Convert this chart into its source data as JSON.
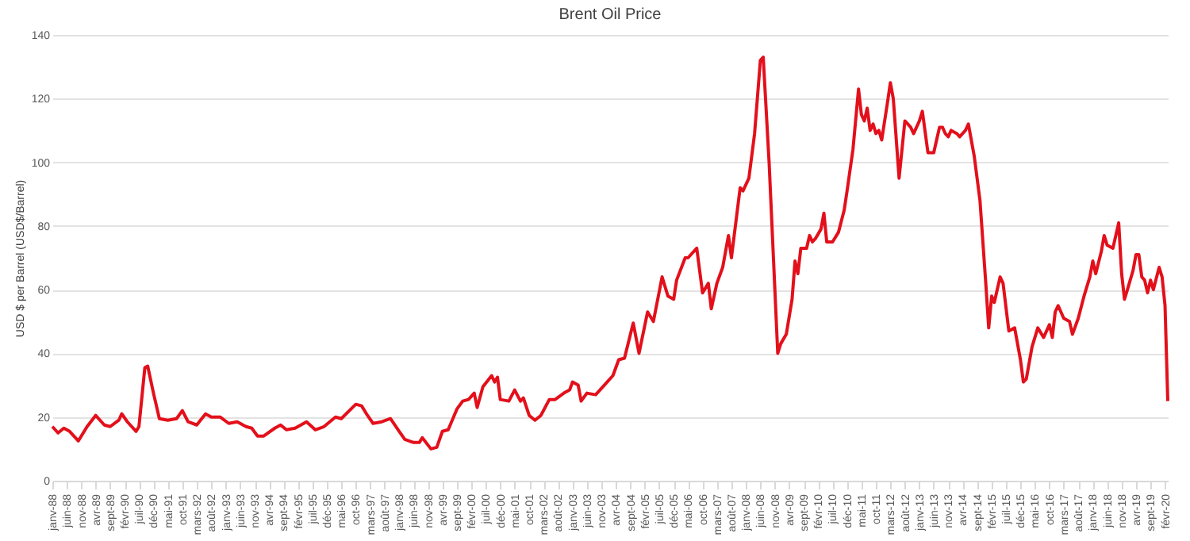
{
  "chart_data": {
    "type": "line",
    "title": "Brent Oil Price",
    "ylabel": "USD $ per Barrel (USD$/Barrel)",
    "x": [
      "1988-01",
      "1988-03",
      "1988-05",
      "1988-07",
      "1988-10",
      "1989-01",
      "1989-04",
      "1989-07",
      "1989-09",
      "1989-12",
      "1990-01",
      "1990-03",
      "1990-06",
      "1990-07",
      "1990-09",
      "1990-10",
      "1990-12",
      "1991-02",
      "1991-05",
      "1991-08",
      "1991-10",
      "1991-12",
      "1992-03",
      "1992-06",
      "1992-08",
      "1992-11",
      "1993-02",
      "1993-05",
      "1993-08",
      "1993-10",
      "1993-12",
      "1994-02",
      "1994-06",
      "1994-08",
      "1994-10",
      "1995-01",
      "1995-05",
      "1995-08",
      "1995-11",
      "1996-03",
      "1996-05",
      "1996-10",
      "1996-12",
      "1997-02",
      "1997-04",
      "1997-07",
      "1997-10",
      "1998-01",
      "1998-03",
      "1998-06",
      "1998-08",
      "1998-09",
      "1998-12",
      "1999-02",
      "1999-04",
      "1999-06",
      "1999-09",
      "1999-11",
      "2000-01",
      "2000-03",
      "2000-04",
      "2000-06",
      "2000-09",
      "2000-10",
      "2000-11",
      "2000-12",
      "2001-03",
      "2001-05",
      "2001-07",
      "2001-08",
      "2001-10",
      "2001-12",
      "2002-02",
      "2002-05",
      "2002-07",
      "2002-10",
      "2002-12",
      "2003-01",
      "2003-03",
      "2003-04",
      "2003-06",
      "2003-09",
      "2003-12",
      "2004-03",
      "2004-05",
      "2004-07",
      "2004-10",
      "2004-12",
      "2005-03",
      "2005-05",
      "2005-08",
      "2005-10",
      "2005-12",
      "2006-01",
      "2006-04",
      "2006-05",
      "2006-08",
      "2006-10",
      "2006-12",
      "2007-01",
      "2007-03",
      "2007-05",
      "2007-07",
      "2007-08",
      "2007-11",
      "2007-12",
      "2008-02",
      "2008-04",
      "2008-06",
      "2008-07",
      "2008-09",
      "2008-12",
      "2009-01",
      "2009-03",
      "2009-05",
      "2009-06",
      "2009-07",
      "2009-08",
      "2009-10",
      "2009-11",
      "2009-12",
      "2010-01",
      "2010-03",
      "2010-04",
      "2010-05",
      "2010-07",
      "2010-09",
      "2010-11",
      "2010-12",
      "2011-02",
      "2011-04",
      "2011-05",
      "2011-06",
      "2011-07",
      "2011-08",
      "2011-09",
      "2011-10",
      "2011-11",
      "2011-12",
      "2012-02",
      "2012-03",
      "2012-04",
      "2012-06",
      "2012-08",
      "2012-09",
      "2012-10",
      "2012-11",
      "2013-01",
      "2013-02",
      "2013-04",
      "2013-06",
      "2013-07",
      "2013-08",
      "2013-09",
      "2013-10",
      "2013-11",
      "2013-12",
      "2014-02",
      "2014-03",
      "2014-05",
      "2014-06",
      "2014-08",
      "2014-10",
      "2014-12",
      "2015-01",
      "2015-02",
      "2015-03",
      "2015-05",
      "2015-06",
      "2015-08",
      "2015-10",
      "2015-12",
      "2016-01",
      "2016-02",
      "2016-04",
      "2016-06",
      "2016-08",
      "2016-10",
      "2016-11",
      "2016-12",
      "2017-01",
      "2017-03",
      "2017-05",
      "2017-06",
      "2017-08",
      "2017-10",
      "2017-12",
      "2018-01",
      "2018-02",
      "2018-04",
      "2018-05",
      "2018-06",
      "2018-08",
      "2018-10",
      "2018-11",
      "2018-12",
      "2019-01",
      "2019-03",
      "2019-04",
      "2019-05",
      "2019-06",
      "2019-07",
      "2019-08",
      "2019-09",
      "2019-10",
      "2019-12",
      "2020-01",
      "2020-02",
      "2020-03"
    ],
    "series": [
      {
        "color": "#e3101b",
        "values": [
          17,
          15,
          16.5,
          15.5,
          12.5,
          17,
          20.5,
          17.5,
          17,
          19,
          21,
          18.5,
          15.5,
          17,
          35.5,
          36,
          27.5,
          19.5,
          19,
          19.5,
          22,
          18.5,
          17.5,
          21,
          20,
          20,
          18,
          18.5,
          17,
          16.5,
          14,
          14,
          16.5,
          17.5,
          16,
          16.5,
          18.5,
          16,
          17,
          20,
          19.5,
          24,
          23.5,
          20.5,
          18,
          18.5,
          19.5,
          15.5,
          13,
          12,
          12,
          13.5,
          10,
          10.5,
          15.5,
          16,
          22.5,
          25,
          25.5,
          27.5,
          23,
          29.5,
          33,
          31,
          32.5,
          25.5,
          25,
          28.5,
          25,
          26,
          20.5,
          19,
          20.5,
          25.5,
          25.5,
          27.5,
          28.5,
          31,
          30,
          25,
          27.5,
          27,
          30,
          33,
          38,
          38.5,
          49.5,
          40,
          53,
          50,
          64,
          58,
          57,
          63,
          70,
          70,
          73,
          59,
          62,
          54,
          62,
          67,
          77,
          70,
          92,
          91,
          95,
          109,
          132,
          133,
          100,
          40,
          43,
          46,
          57,
          69,
          65,
          73,
          73,
          77,
          75,
          76,
          79,
          84,
          75,
          75,
          78,
          85,
          91,
          104,
          123,
          115,
          113,
          117,
          110,
          112,
          109,
          110,
          107,
          119,
          125,
          120,
          95,
          113,
          112,
          111,
          109,
          113,
          116,
          103,
          103,
          107,
          111,
          111,
          109,
          108,
          110,
          109,
          108,
          110,
          112,
          102,
          88,
          62,
          48,
          58,
          56,
          64,
          62,
          47,
          48,
          38,
          31,
          32,
          42,
          48,
          45,
          49,
          45,
          53,
          55,
          51,
          50,
          46,
          51,
          58,
          64,
          69,
          65,
          72,
          77,
          74,
          73,
          81,
          65,
          57,
          60,
          66,
          71,
          71,
          64,
          63,
          59,
          63,
          60,
          67,
          64,
          55,
          25
        ]
      }
    ],
    "xlim": [
      "1988-01",
      "2020-03"
    ],
    "ylim": [
      0,
      140
    ],
    "yticks": [
      0,
      20,
      40,
      60,
      80,
      100,
      120,
      140
    ],
    "grid": "y",
    "marker": "none",
    "line_style": "solid",
    "xticks": [
      {
        "value": "1988-01",
        "label": "janv-88"
      },
      {
        "value": "1988-06",
        "label": "juin-88"
      },
      {
        "value": "1988-11",
        "label": "nov-88"
      },
      {
        "value": "1989-04",
        "label": "avr-89"
      },
      {
        "value": "1989-09",
        "label": "sept-89"
      },
      {
        "value": "1990-02",
        "label": "févr-90"
      },
      {
        "value": "1990-07",
        "label": "juil-90"
      },
      {
        "value": "1990-12",
        "label": "déc-90"
      },
      {
        "value": "1991-05",
        "label": "mai-91"
      },
      {
        "value": "1991-10",
        "label": "oct-91"
      },
      {
        "value": "1992-03",
        "label": "mars-92"
      },
      {
        "value": "1992-08",
        "label": "août-92"
      },
      {
        "value": "1993-01",
        "label": "janv-93"
      },
      {
        "value": "1993-06",
        "label": "juin-93"
      },
      {
        "value": "1993-11",
        "label": "nov-93"
      },
      {
        "value": "1994-04",
        "label": "avr-94"
      },
      {
        "value": "1994-09",
        "label": "sept-94"
      },
      {
        "value": "1995-02",
        "label": "févr-95"
      },
      {
        "value": "1995-07",
        "label": "juil-95"
      },
      {
        "value": "1995-12",
        "label": "déc-95"
      },
      {
        "value": "1996-05",
        "label": "mai-96"
      },
      {
        "value": "1996-10",
        "label": "oct-96"
      },
      {
        "value": "1997-03",
        "label": "mars-97"
      },
      {
        "value": "1997-08",
        "label": "août-97"
      },
      {
        "value": "1998-01",
        "label": "janv-98"
      },
      {
        "value": "1998-06",
        "label": "juin-98"
      },
      {
        "value": "1998-11",
        "label": "nov-98"
      },
      {
        "value": "1999-04",
        "label": "avr-99"
      },
      {
        "value": "1999-09",
        "label": "sept-99"
      },
      {
        "value": "2000-02",
        "label": "févr-00"
      },
      {
        "value": "2000-07",
        "label": "juil-00"
      },
      {
        "value": "2000-12",
        "label": "déc-00"
      },
      {
        "value": "2001-05",
        "label": "mai-01"
      },
      {
        "value": "2001-10",
        "label": "oct-01"
      },
      {
        "value": "2002-03",
        "label": "mars-02"
      },
      {
        "value": "2002-08",
        "label": "août-02"
      },
      {
        "value": "2003-01",
        "label": "janv-03"
      },
      {
        "value": "2003-06",
        "label": "juin-03"
      },
      {
        "value": "2003-11",
        "label": "nov-03"
      },
      {
        "value": "2004-04",
        "label": "avr-04"
      },
      {
        "value": "2004-09",
        "label": "sept-04"
      },
      {
        "value": "2005-02",
        "label": "févr-05"
      },
      {
        "value": "2005-07",
        "label": "juil-05"
      },
      {
        "value": "2005-12",
        "label": "déc-05"
      },
      {
        "value": "2006-05",
        "label": "mai-06"
      },
      {
        "value": "2006-10",
        "label": "oct-06"
      },
      {
        "value": "2007-03",
        "label": "mars-07"
      },
      {
        "value": "2007-08",
        "label": "août-07"
      },
      {
        "value": "2008-01",
        "label": "janv-08"
      },
      {
        "value": "2008-06",
        "label": "juin-08"
      },
      {
        "value": "2008-11",
        "label": "nov-08"
      },
      {
        "value": "2009-04",
        "label": "avr-09"
      },
      {
        "value": "2009-09",
        "label": "sept-09"
      },
      {
        "value": "2010-02",
        "label": "févr-10"
      },
      {
        "value": "2010-07",
        "label": "juil-10"
      },
      {
        "value": "2010-12",
        "label": "déc-10"
      },
      {
        "value": "2011-05",
        "label": "mai-11"
      },
      {
        "value": "2011-10",
        "label": "oct-11"
      },
      {
        "value": "2012-03",
        "label": "mars-12"
      },
      {
        "value": "2012-08",
        "label": "août-12"
      },
      {
        "value": "2013-01",
        "label": "janv-13"
      },
      {
        "value": "2013-06",
        "label": "juin-13"
      },
      {
        "value": "2013-11",
        "label": "nov-13"
      },
      {
        "value": "2014-04",
        "label": "avr-14"
      },
      {
        "value": "2014-09",
        "label": "sept-14"
      },
      {
        "value": "2015-02",
        "label": "févr-15"
      },
      {
        "value": "2015-07",
        "label": "juil-15"
      },
      {
        "value": "2015-12",
        "label": "déc-15"
      },
      {
        "value": "2016-05",
        "label": "mai-16"
      },
      {
        "value": "2016-10",
        "label": "oct-16"
      },
      {
        "value": "2017-03",
        "label": "mars-17"
      },
      {
        "value": "2017-08",
        "label": "août-17"
      },
      {
        "value": "2018-01",
        "label": "janv-18"
      },
      {
        "value": "2018-06",
        "label": "juin-18"
      },
      {
        "value": "2018-11",
        "label": "nov-18"
      },
      {
        "value": "2019-04",
        "label": "avr-19"
      },
      {
        "value": "2019-09",
        "label": "sept-19"
      },
      {
        "value": "2020-02",
        "label": "févr-20"
      }
    ]
  }
}
